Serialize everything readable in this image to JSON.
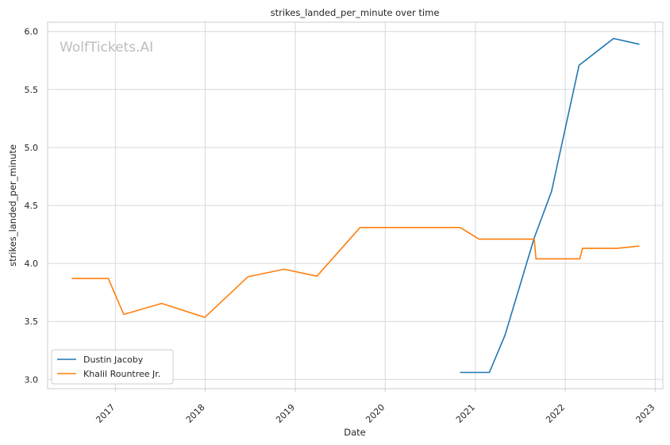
{
  "chart_data": {
    "type": "line",
    "title": "strikes_landed_per_minute over time",
    "xlabel": "Date",
    "ylabel": "strikes_landed_per_minute",
    "watermark": "WolfTickets.AI",
    "xlim": [
      "2016-04-01",
      "2023-02-01"
    ],
    "ylim": [
      2.92,
      6.08
    ],
    "x_ticks": [
      "2017-01-01",
      "2018-01-01",
      "2019-01-01",
      "2020-01-01",
      "2021-01-01",
      "2022-01-01",
      "2023-01-01"
    ],
    "x_tick_labels": [
      "2017",
      "2018",
      "2019",
      "2020",
      "2021",
      "2022",
      "2023"
    ],
    "y_ticks": [
      3.0,
      3.5,
      4.0,
      4.5,
      5.0,
      5.5,
      6.0
    ],
    "y_tick_labels": [
      "3.0",
      "3.5",
      "4.0",
      "4.5",
      "5.0",
      "5.5",
      "6.0"
    ],
    "grid": true,
    "legend_position": "lower-left",
    "series": [
      {
        "name": "Dustin Jacoby",
        "color": "#1f77b4",
        "points": [
          [
            "2020-10-31",
            3.06
          ],
          [
            "2021-02-27",
            3.06
          ],
          [
            "2021-05-01",
            3.38
          ],
          [
            "2021-08-28",
            4.22
          ],
          [
            "2021-11-06",
            4.62
          ],
          [
            "2022-02-26",
            5.71
          ],
          [
            "2022-03-05",
            5.72
          ],
          [
            "2022-07-16",
            5.94
          ],
          [
            "2022-10-29",
            5.89
          ]
        ]
      },
      {
        "name": "Khalil Rountree Jr.",
        "color": "#ff7f0e",
        "points": [
          [
            "2016-07-08",
            3.87
          ],
          [
            "2016-12-03",
            3.87
          ],
          [
            "2017-02-04",
            3.56
          ],
          [
            "2017-07-08",
            3.655
          ],
          [
            "2017-12-30",
            3.535
          ],
          [
            "2018-06-23",
            3.885
          ],
          [
            "2018-11-17",
            3.95
          ],
          [
            "2019-03-30",
            3.89
          ],
          [
            "2019-09-21",
            4.31
          ],
          [
            "2020-10-31",
            4.31
          ],
          [
            "2021-01-16",
            4.21
          ],
          [
            "2021-08-28",
            4.21
          ],
          [
            "2021-09-04",
            4.04
          ],
          [
            "2022-03-01",
            4.04
          ],
          [
            "2022-03-12",
            4.13
          ],
          [
            "2022-07-30",
            4.13
          ],
          [
            "2022-10-29",
            4.15
          ]
        ]
      }
    ]
  }
}
